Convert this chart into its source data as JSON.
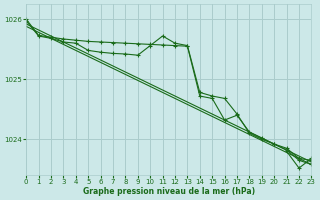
{
  "bg_color": "#cce8e8",
  "grid_color": "#aacccc",
  "line_color": "#1a6b1a",
  "xlabel": "Graphe pression niveau de la mer (hPa)",
  "ylim": [
    1023.4,
    1026.25
  ],
  "xlim": [
    0,
    23
  ],
  "yticks": [
    1024,
    1025,
    1026
  ],
  "xticks": [
    0,
    1,
    2,
    3,
    4,
    5,
    6,
    7,
    8,
    9,
    10,
    11,
    12,
    13,
    14,
    15,
    16,
    17,
    18,
    19,
    20,
    21,
    22,
    23
  ],
  "line1_x": [
    0,
    23
  ],
  "line1_y": [
    1025.92,
    1023.62
  ],
  "line2_x": [
    0,
    23
  ],
  "line2_y": [
    1025.88,
    1023.58
  ],
  "line3_x": [
    0,
    1,
    2,
    3,
    4,
    5,
    6,
    7,
    8,
    9,
    10,
    11,
    12,
    13,
    14,
    15,
    16,
    17,
    18,
    19,
    20,
    21,
    22,
    23
  ],
  "line3_y": [
    1026.0,
    1025.73,
    1025.7,
    1025.67,
    1025.65,
    1025.63,
    1025.62,
    1025.61,
    1025.6,
    1025.59,
    1025.58,
    1025.57,
    1025.56,
    1025.55,
    1024.72,
    1024.68,
    1024.32,
    1024.4,
    1024.12,
    1024.02,
    1023.92,
    1023.82,
    1023.65,
    1023.58
  ],
  "line4_x": [
    0,
    1,
    2,
    3,
    4,
    5,
    6,
    7,
    8,
    9,
    10,
    11,
    12,
    13,
    14,
    15,
    16,
    17,
    18,
    19,
    20,
    21,
    22,
    23
  ],
  "line4_y": [
    1025.97,
    1025.72,
    1025.68,
    1025.62,
    1025.6,
    1025.48,
    1025.45,
    1025.43,
    1025.42,
    1025.4,
    1025.56,
    1025.72,
    1025.6,
    1025.56,
    1024.78,
    1024.72,
    1024.68,
    1024.42,
    1024.1,
    1024.0,
    1023.92,
    1023.85,
    1023.68,
    1023.65
  ],
  "line5_x": [
    22,
    23
  ],
  "line5_y": [
    1023.52,
    1023.68
  ]
}
